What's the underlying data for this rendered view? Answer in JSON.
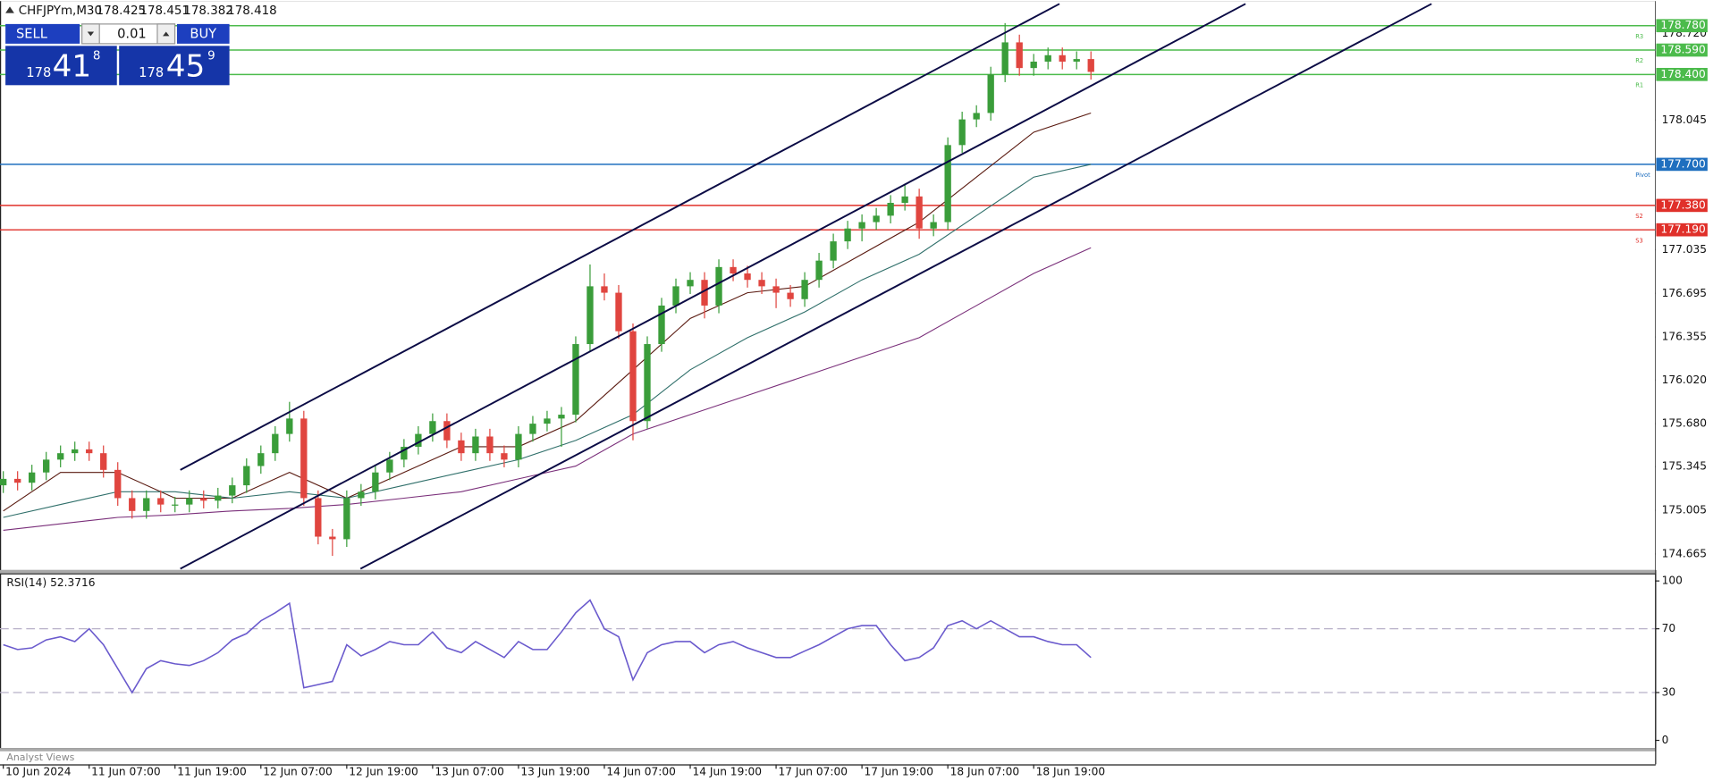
{
  "header": {
    "symbol": "CHFJPYm,M30",
    "quote": [
      178.425,
      178.451,
      178.382,
      178.418
    ]
  },
  "trade_panel": {
    "sell": "SELL",
    "buy": "BUY",
    "volume": "0.01",
    "bid": {
      "big": "178",
      "main": "41",
      "small": "8"
    },
    "ask": {
      "big": "178",
      "main": "45",
      "small": "9"
    }
  },
  "chart_data": [
    {
      "type": "candlestick",
      "x_labels": [
        "10 Jun 2024",
        "11 Jun 07:00",
        "11 Jun 19:00",
        "12 Jun 07:00",
        "12 Jun 19:00",
        "13 Jun 07:00",
        "13 Jun 19:00",
        "14 Jun 07:00",
        "14 Jun 19:00",
        "17 Jun 07:00",
        "17 Jun 19:00",
        "18 Jun 07:00",
        "18 Jun 19:00"
      ],
      "open": [
        175.2,
        175.25,
        175.22,
        175.3,
        175.4,
        175.45,
        175.48,
        175.45,
        175.32,
        175.1,
        175.0,
        175.1,
        175.05,
        175.05,
        175.1,
        175.08,
        175.12,
        175.2,
        175.35,
        175.45,
        175.6,
        175.72,
        175.1,
        174.8,
        174.78,
        175.1,
        175.15,
        175.3,
        175.4,
        175.5,
        175.6,
        175.7,
        175.55,
        175.45,
        175.58,
        175.45,
        175.4,
        175.6,
        175.68,
        175.72,
        175.75,
        176.3,
        176.75,
        176.7,
        176.4,
        175.7,
        176.3,
        176.6,
        176.75,
        176.8,
        176.6,
        176.9,
        176.85,
        176.8,
        176.75,
        176.7,
        176.65,
        176.8,
        176.95,
        177.1,
        177.2,
        177.25,
        177.3,
        177.4,
        177.45,
        177.2,
        177.25,
        177.85,
        178.05,
        178.1,
        178.4,
        178.65,
        178.45,
        178.5,
        178.55,
        178.5,
        178.52
      ],
      "high": [
        175.31,
        175.31,
        175.36,
        175.46,
        175.51,
        175.54,
        175.54,
        175.51,
        175.38,
        175.16,
        175.16,
        175.16,
        175.11,
        175.16,
        175.16,
        175.18,
        175.26,
        175.41,
        175.51,
        175.66,
        175.85,
        175.78,
        175.16,
        174.86,
        175.16,
        175.21,
        175.36,
        175.46,
        175.56,
        175.66,
        175.76,
        175.76,
        175.61,
        175.64,
        175.64,
        175.51,
        175.66,
        175.74,
        175.78,
        175.81,
        176.36,
        176.92,
        176.85,
        176.76,
        176.46,
        176.36,
        176.66,
        176.81,
        176.86,
        176.86,
        176.96,
        176.96,
        176.91,
        176.86,
        176.81,
        176.76,
        176.86,
        177.01,
        177.16,
        177.26,
        177.31,
        177.36,
        177.46,
        177.55,
        177.51,
        177.31,
        177.91,
        178.11,
        178.16,
        178.46,
        178.8,
        178.71,
        178.56,
        178.61,
        178.61,
        178.58,
        178.58
      ],
      "low": [
        175.14,
        175.16,
        175.16,
        175.24,
        175.34,
        175.39,
        175.39,
        175.26,
        175.04,
        174.94,
        174.94,
        174.99,
        174.99,
        174.99,
        175.02,
        175.02,
        175.06,
        175.14,
        175.29,
        175.39,
        175.54,
        175.04,
        174.74,
        174.65,
        174.72,
        175.04,
        175.09,
        175.24,
        175.34,
        175.44,
        175.54,
        175.49,
        175.39,
        175.39,
        175.39,
        175.34,
        175.34,
        175.54,
        175.62,
        175.5,
        175.69,
        176.24,
        176.64,
        176.34,
        175.55,
        175.64,
        176.24,
        176.54,
        176.69,
        176.5,
        176.54,
        176.79,
        176.74,
        176.69,
        176.58,
        176.59,
        176.59,
        176.74,
        176.89,
        177.04,
        177.1,
        177.19,
        177.24,
        177.34,
        177.12,
        177.14,
        177.19,
        177.79,
        177.99,
        178.04,
        178.34,
        178.39,
        178.39,
        178.44,
        178.44,
        178.44,
        178.36
      ],
      "close": [
        175.25,
        175.22,
        175.3,
        175.4,
        175.45,
        175.48,
        175.45,
        175.32,
        175.1,
        175.0,
        175.1,
        175.05,
        175.05,
        175.1,
        175.08,
        175.12,
        175.2,
        175.35,
        175.45,
        175.6,
        175.72,
        175.1,
        174.8,
        174.78,
        175.1,
        175.15,
        175.3,
        175.4,
        175.5,
        175.6,
        175.7,
        175.55,
        175.45,
        175.58,
        175.45,
        175.4,
        175.6,
        175.68,
        175.72,
        175.75,
        176.3,
        176.75,
        176.7,
        176.4,
        175.7,
        176.3,
        176.6,
        176.75,
        176.8,
        176.6,
        176.9,
        176.85,
        176.8,
        176.75,
        176.7,
        176.65,
        176.8,
        176.95,
        177.1,
        177.2,
        177.25,
        177.3,
        177.4,
        177.45,
        177.2,
        177.25,
        177.85,
        178.05,
        178.1,
        178.4,
        178.65,
        178.45,
        178.5,
        178.55,
        178.5,
        178.52,
        178.42
      ],
      "colors": {
        "up": "#3a9d3a",
        "down": "#e0453f"
      },
      "ylim": [
        174.54,
        178.98
      ],
      "yticks": [
        {
          "value": 178.72,
          "label": "178.720"
        },
        178.045,
        177.035,
        176.695,
        176.355,
        {
          "value": 176.02,
          "label": "176.020"
        },
        {
          "value": 175.68,
          "label": "175.680"
        },
        175.345,
        175.005,
        174.665
      ],
      "levels": [
        {
          "name": "R3",
          "value": 178.78,
          "label": "178.780",
          "color": "#4cbb4c"
        },
        {
          "name": "R2",
          "value": 178.59,
          "label": "178.590",
          "color": "#4cbb4c"
        },
        {
          "name": "R1",
          "value": 178.4,
          "label": "178.400",
          "color": "#4cbb4c"
        },
        {
          "name": "Pivot",
          "value": 177.7,
          "label": "177.700",
          "color": "#1f6fbf"
        },
        {
          "name": "S2",
          "value": 177.38,
          "label": "177.380",
          "color": "#e0302a"
        },
        {
          "name": "S3",
          "value": 177.19,
          "label": "177.190",
          "color": "#e0302a"
        }
      ],
      "moving_averages": {
        "x": [
          0,
          4,
          8,
          12,
          16,
          20,
          24,
          28,
          32,
          36,
          40,
          44,
          48,
          52,
          56,
          60,
          64,
          68,
          72,
          76
        ],
        "series": [
          {
            "color": "#5a1a10",
            "values": [
              175.0,
              175.3,
              175.3,
              175.1,
              175.1,
              175.3,
              175.1,
              175.3,
              175.5,
              175.5,
              175.7,
              176.1,
              176.5,
              176.7,
              176.75,
              177.0,
              177.25,
              177.6,
              177.95,
              178.1
            ]
          },
          {
            "color": "#2f6f6a",
            "values": [
              174.95,
              175.05,
              175.15,
              175.15,
              175.1,
              175.15,
              175.1,
              175.2,
              175.3,
              175.4,
              175.55,
              175.75,
              176.1,
              176.35,
              176.55,
              176.8,
              177.0,
              177.3,
              177.6,
              177.7
            ]
          },
          {
            "color": "#7a2f7a",
            "values": [
              174.85,
              174.9,
              174.95,
              174.97,
              175.0,
              175.02,
              175.05,
              175.1,
              175.15,
              175.25,
              175.35,
              175.6,
              175.75,
              175.9,
              176.05,
              176.2,
              176.35,
              176.6,
              176.85,
              177.05
            ]
          }
        ]
      },
      "trendlines": [
        {
          "color": "#0b0b45",
          "points": [
            [
              12.37,
              175.32
            ],
            [
              73.8,
              178.95
            ]
          ]
        },
        {
          "color": "#0b0b45",
          "points": [
            [
              12.37,
              174.55
            ],
            [
              86.8,
              178.95
            ]
          ]
        },
        {
          "color": "#0b0b45",
          "points": [
            [
              24.96,
              174.55
            ],
            [
              99.8,
              178.95
            ]
          ]
        }
      ]
    },
    {
      "type": "line",
      "title": "RSI(14) 52.3716",
      "color": "#6a5acd",
      "values": [
        60,
        57,
        58,
        63,
        65,
        62,
        70,
        60,
        45,
        30,
        45,
        50,
        48,
        47,
        50,
        55,
        63,
        67,
        75,
        80,
        86,
        33,
        35,
        37,
        60,
        53,
        57,
        62,
        60,
        60,
        68,
        58,
        55,
        62,
        57,
        52,
        62,
        57,
        57,
        68,
        80,
        88,
        70,
        65,
        38,
        55,
        60,
        62,
        62,
        55,
        60,
        62,
        58,
        55,
        52,
        52,
        56,
        60,
        65,
        70,
        72,
        72,
        60,
        50,
        52,
        58,
        72,
        75,
        70,
        75,
        70,
        65,
        65,
        62,
        60,
        60,
        52
      ],
      "ylim": [
        -4.8,
        104.8
      ],
      "yticks": [
        100,
        70,
        30,
        0
      ],
      "dashed_levels": [
        70,
        30
      ]
    }
  ],
  "footer": "Analyst Views"
}
